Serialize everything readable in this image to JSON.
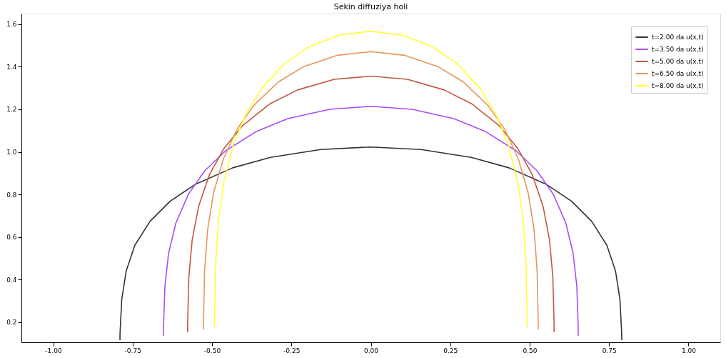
{
  "chart_data": {
    "type": "line",
    "title": "Sekin diffuziya holi",
    "xlim": [
      -1.1,
      1.1
    ],
    "ylim": [
      0.105,
      1.65
    ],
    "xticks": [
      {
        "value": -1,
        "label": "-1.00"
      },
      {
        "value": -0.75,
        "label": "-0.75"
      },
      {
        "value": -0.5,
        "label": "-0.50"
      },
      {
        "value": -0.25,
        "label": "-0.25"
      },
      {
        "value": 0,
        "label": "0.00"
      },
      {
        "value": 0.25,
        "label": "0.25"
      },
      {
        "value": 0.5,
        "label": "0.50"
      },
      {
        "value": 0.75,
        "label": "0.75"
      },
      {
        "value": 1,
        "label": "1.00"
      }
    ],
    "yticks": [
      0.2,
      0.4,
      0.6,
      0.8,
      {
        "value": 1,
        "label": "1.0"
      },
      1.2,
      1.4,
      1.6
    ],
    "grid": false,
    "legend": "top right",
    "marker": "none",
    "line_style": "solid",
    "series": [
      {
        "name": "t=2.00 da u(x,t)",
        "color": "#333333",
        "x": [
          -0.7898,
          -0.7896,
          -0.784,
          -0.77,
          -0.743,
          -0.695,
          -0.632,
          -0.553,
          -0.435,
          -0.316,
          -0.158,
          0,
          0.158,
          0.316,
          0.435,
          0.553,
          0.632,
          0.695,
          0.743,
          0.77,
          0.784,
          0.7896,
          0.7898
        ],
        "values": [
          0.115,
          0.148,
          0.309,
          0.441,
          0.561,
          0.674,
          0.768,
          0.847,
          0.925,
          0.974,
          1.011,
          1.023,
          1.011,
          0.974,
          0.925,
          0.847,
          0.768,
          0.674,
          0.561,
          0.441,
          0.309,
          0.148,
          0.115
        ]
      },
      {
        "name": "t=3.50 da u(x,t)",
        "color": "#a64dff",
        "x": [
          -0.6529,
          -0.6527,
          -0.6484,
          -0.6367,
          -0.6138,
          -0.5746,
          -0.5224,
          -0.4571,
          -0.3592,
          -0.2612,
          -0.1306,
          0,
          0.1306,
          0.2612,
          0.3592,
          0.4571,
          0.5224,
          0.5746,
          0.6138,
          0.6367,
          0.6484,
          0.6527,
          0.6529
        ],
        "values": [
          0.136,
          0.176,
          0.367,
          0.523,
          0.665,
          0.8,
          0.912,
          1.005,
          1.097,
          1.156,
          1.2,
          1.214,
          1.2,
          1.156,
          1.097,
          1.005,
          0.912,
          0.8,
          0.665,
          0.523,
          0.367,
          0.176,
          0.136
        ]
      },
      {
        "name": "t=5.00 da u(x,t)",
        "color": "#c0583f",
        "x": [
          -0.5769,
          -0.5767,
          -0.573,
          -0.5626,
          -0.5424,
          -0.5078,
          -0.4616,
          -0.4039,
          -0.3174,
          -0.2308,
          -0.1154,
          0,
          0.1154,
          0.2308,
          0.3174,
          0.4039,
          0.4616,
          0.5078,
          0.5424,
          0.5626,
          0.573,
          0.5767,
          0.5769
        ],
        "values": [
          0.152,
          0.196,
          0.41,
          0.584,
          0.743,
          0.894,
          1.018,
          1.123,
          1.226,
          1.291,
          1.341,
          1.356,
          1.341,
          1.291,
          1.226,
          1.123,
          1.018,
          0.894,
          0.743,
          0.584,
          0.41,
          0.196,
          0.152
        ]
      },
      {
        "name": "t=6.50 da u(x,t)",
        "color": "#e8955a",
        "x": [
          -0.5269,
          -0.5267,
          -0.5233,
          -0.5138,
          -0.4954,
          -0.4638,
          -0.4216,
          -0.3689,
          -0.2899,
          -0.2108,
          -0.1054,
          0,
          0.1054,
          0.2108,
          0.2899,
          0.3689,
          0.4216,
          0.4638,
          0.4954,
          0.5138,
          0.5233,
          0.5267,
          0.5269
        ],
        "values": [
          0.165,
          0.213,
          0.444,
          0.634,
          0.806,
          0.969,
          1.105,
          1.218,
          1.33,
          1.401,
          1.454,
          1.471,
          1.454,
          1.401,
          1.33,
          1.218,
          1.105,
          0.969,
          0.806,
          0.634,
          0.444,
          0.213,
          0.165
        ]
      },
      {
        "name": "t=8.00 da u(x,t)",
        "color": "#ffff33",
        "x": [
          -0.4919,
          -0.4918,
          -0.4886,
          -0.4797,
          -0.4625,
          -0.433,
          -0.3936,
          -0.3444,
          -0.2706,
          -0.1968,
          -0.0984,
          0,
          0.0984,
          0.1968,
          0.2706,
          0.3444,
          0.3936,
          0.433,
          0.4625,
          0.4797,
          0.4886,
          0.4918,
          0.4919
        ],
        "values": [
          0.176,
          0.227,
          0.473,
          0.675,
          0.859,
          1.033,
          1.177,
          1.297,
          1.417,
          1.492,
          1.549,
          1.567,
          1.549,
          1.492,
          1.417,
          1.297,
          1.177,
          1.033,
          0.859,
          0.675,
          0.473,
          0.227,
          0.176
        ]
      }
    ]
  }
}
